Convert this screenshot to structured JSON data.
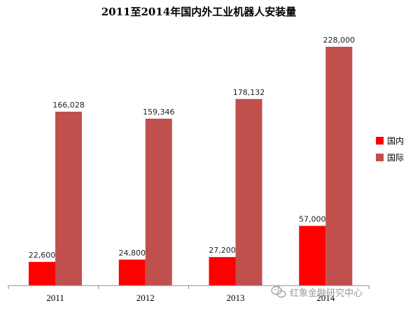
{
  "chart_data": {
    "type": "bar",
    "title": "2011至2014年国内外工业机器人安装量",
    "categories": [
      "2011",
      "2012",
      "2013",
      "2014"
    ],
    "series": [
      {
        "name": "国内",
        "values": [
          22600,
          24800,
          27200,
          57000
        ],
        "color": "#ff0000"
      },
      {
        "name": "国际",
        "values": [
          166028,
          159346,
          178132,
          228000
        ],
        "color": "#c0504d"
      }
    ],
    "data_labels": [
      [
        "22,600",
        "24,800",
        "27,200",
        "57,000"
      ],
      [
        "166,028",
        "159,346",
        "178,132",
        "228,000"
      ]
    ],
    "ylim": [
      0,
      250000
    ],
    "xlabel": "",
    "ylabel": "",
    "grid": false,
    "legend_position": "right"
  },
  "watermark": {
    "text": "红象金融研究中心",
    "icon": "wechat-icon"
  }
}
